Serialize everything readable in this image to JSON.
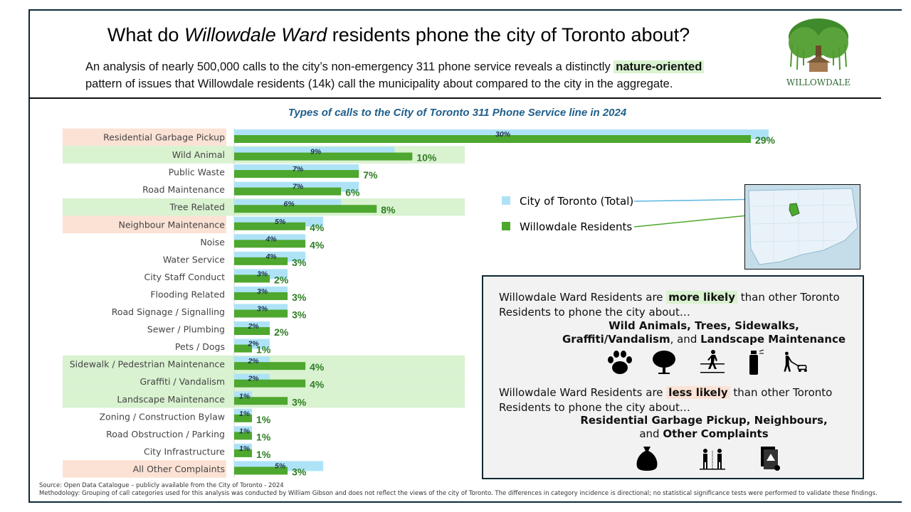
{
  "header": {
    "title_pre": "What do ",
    "title_em": "Willowdale Ward",
    "title_post": " residents phone the city of Toronto about?",
    "subtitle_1_pre": "An analysis of nearly 500,000 calls to the city’s non-emergency 311 phone service reveals a distinctly ",
    "subtitle_1_hl": "nature-oriented",
    "subtitle_2": "pattern of issues that Willowdale residents (14k) call the municipality about compared to the city in the aggregate.",
    "logo_text": "WILLOWDALE"
  },
  "colors": {
    "city": "#aee3f7",
    "willowdale": "#4ea72e",
    "more_bg": "#d9f2d0",
    "less_bg": "#fbe2d5",
    "title_blue": "#1f5f8b"
  },
  "chart_data": {
    "type": "bar",
    "orientation": "horizontal",
    "title": "Types of calls to the City of Toronto 311 Phone Service line in 2024",
    "categories": [
      "Residential Garbage Pickup",
      "Wild Animal",
      "Public Waste",
      "Road Maintenance",
      "Tree Related",
      "Neighbour Maintenance",
      "Noise",
      "Water Service",
      "City Staff Conduct",
      "Flooding Related",
      "Road Signage / Signalling",
      "Sewer / Plumbing",
      "Pets / Dogs",
      "Sidewalk / Pedestrian Maintenance",
      "Graffiti / Vandalism",
      "Landscape Maintenance",
      "Zoning / Construction Bylaw",
      "Road Obstruction / Parking",
      "City Infrastructure",
      "All Other Complaints"
    ],
    "highlight": [
      "less",
      "more",
      "",
      "",
      "more",
      "less",
      "",
      "",
      "",
      "",
      "",
      "",
      "",
      "more",
      "more",
      "more",
      "",
      "",
      "",
      "less"
    ],
    "series": [
      {
        "name": "City of Toronto (Total)",
        "values": [
          30,
          9,
          7,
          7,
          6,
          5,
          4,
          4,
          3,
          3,
          3,
          2,
          2,
          2,
          2,
          1,
          1,
          1,
          1,
          5
        ]
      },
      {
        "name": "Willowdale Residents",
        "values": [
          29,
          10,
          7,
          6,
          8,
          4,
          4,
          3,
          2,
          3,
          3,
          2,
          1,
          4,
          4,
          3,
          1,
          1,
          1,
          3
        ]
      }
    ],
    "unit": "%",
    "xlim": [
      0,
      30
    ]
  },
  "box": {
    "more_pre": "Willowdale Ward Residents are ",
    "more_hl": "more likely",
    "more_post": " than other Toronto",
    "line2": "Residents to phone the city about…",
    "more_items_1": "Wild Animals, Trees, Sidewalks,",
    "more_items_2a": "Graffiti/Vandalism",
    "more_items_2b": ", and ",
    "more_items_2c": "Landscape Maintenance",
    "less_pre": "Willowdale Ward Residents are ",
    "less_hl": "less likely",
    "less_post": " than other Toronto",
    "less_items_1": "Residential Garbage Pickup, Neighbours,",
    "less_items_2a": "and ",
    "less_items_2b": "Other Complaints"
  },
  "footer": {
    "source": "Source: Open Data Catalogue – publicly available from the City of Toronto - 2024",
    "methodology": "Methodology: Grouping of call categories used for this analysis was conducted by William Gibson and does not reflect the views of the city of Toronto. The differences in category incidence is directional; no statistical significance tests were performed to validate these findings."
  }
}
